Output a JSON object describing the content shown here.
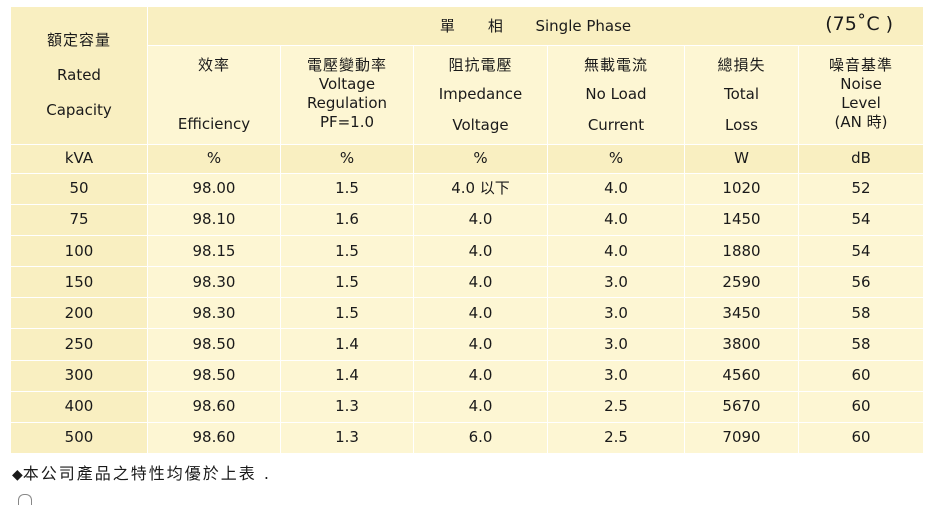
{
  "title": {
    "zh": "單　　相",
    "en": "Single Phase",
    "temp": "(75˚C )"
  },
  "capacity": {
    "zh": "額定容量",
    "en1": "Rated",
    "en2": "Capacity"
  },
  "columns": [
    {
      "zh": "效率",
      "en": [
        "Efficiency"
      ]
    },
    {
      "zh": "電壓變動率",
      "en": [
        "Voltage",
        "Regulation",
        "PF=1.0"
      ]
    },
    {
      "zh": "阻抗電壓",
      "en": [
        "Impedance",
        "Voltage"
      ]
    },
    {
      "zh": "無載電流",
      "en": [
        "No Load",
        "Current"
      ]
    },
    {
      "zh": "總損失",
      "en": [
        "Total",
        "Loss"
      ]
    },
    {
      "zh": "噪音基準",
      "en": [
        "Noise",
        "Level",
        "(AN 時)"
      ]
    }
  ],
  "units": [
    "kVA",
    "%",
    "%",
    "%",
    "%",
    "W",
    "dB"
  ],
  "rows": [
    [
      "50",
      "98.00",
      "1.5",
      "4.0 以下",
      "4.0",
      "1020",
      "52"
    ],
    [
      "75",
      "98.10",
      "1.6",
      "4.0",
      "4.0",
      "1450",
      "54"
    ],
    [
      "100",
      "98.15",
      "1.5",
      "4.0",
      "4.0",
      "1880",
      "54"
    ],
    [
      "150",
      "98.30",
      "1.5",
      "4.0",
      "3.0",
      "2590",
      "56"
    ],
    [
      "200",
      "98.30",
      "1.5",
      "4.0",
      "3.0",
      "3450",
      "58"
    ],
    [
      "250",
      "98.50",
      "1.4",
      "4.0",
      "3.0",
      "3800",
      "58"
    ],
    [
      "300",
      "98.50",
      "1.4",
      "4.0",
      "3.0",
      "4560",
      "60"
    ],
    [
      "400",
      "98.60",
      "1.3",
      "4.0",
      "2.5",
      "5670",
      "60"
    ],
    [
      "500",
      "98.60",
      "1.3",
      "6.0",
      "2.5",
      "7090",
      "60"
    ]
  ],
  "note": {
    "bullet": "◆",
    "text": "本公司產品之特性均優於上表 ."
  }
}
